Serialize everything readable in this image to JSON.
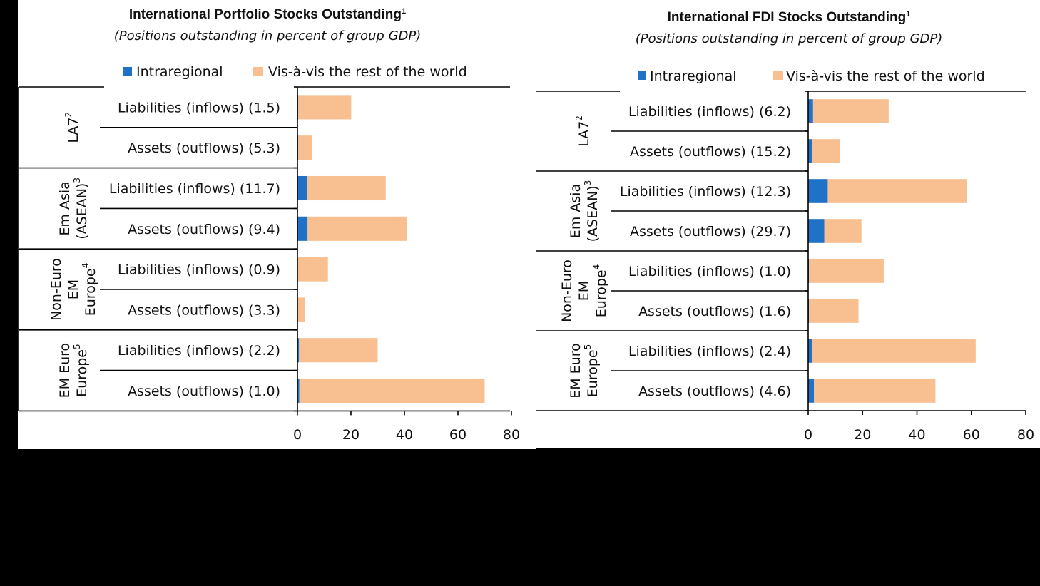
{
  "chart_data": [
    {
      "type": "bar",
      "stacked": true,
      "orientation": "horizontal",
      "title": "International Portfolio Stocks Outstanding",
      "title_sup": "1",
      "subtitle": "(Positions outstanding in percent of group  GDP)",
      "legend_placement": "top",
      "xlim": [
        0,
        80
      ],
      "xticks": [
        "0",
        "20",
        "40",
        "60",
        "80"
      ],
      "groups": [
        {
          "label_lines": [
            "LA7"
          ],
          "sup": "2"
        },
        {
          "label_lines": [
            "Em Asia",
            "(ASEAN)"
          ],
          "sup": "3"
        },
        {
          "label_lines": [
            "Non-Euro",
            "EM",
            "Europe"
          ],
          "sup": "4"
        },
        {
          "label_lines": [
            "EM Euro",
            "Europe"
          ],
          "sup": "5"
        }
      ],
      "categories": [
        "Liabilities (inflows) (1.5)",
        "Assets (outflows) (5.3)",
        "Liabilities (inflows) (11.7)",
        "Assets (outflows) (9.4)",
        "Liabilities (inflows) (0.9)",
        "Assets (outflows) (3.3)",
        "Liabilities (inflows) (2.2)",
        "Assets (outflows) (1.0)"
      ],
      "series": [
        {
          "name": "Intraregional",
          "color": "#1F72C8",
          "values": [
            0.3,
            0.3,
            3.7,
            3.8,
            0.1,
            0.1,
            0.6,
            0.7
          ]
        },
        {
          "name": "Vis-à-vis the rest of the world",
          "color": "#F8C090",
          "values": [
            19.8,
            5.3,
            29.3,
            37.2,
            11.3,
            2.8,
            29.4,
            69.3
          ]
        }
      ]
    },
    {
      "type": "bar",
      "stacked": true,
      "orientation": "horizontal",
      "title": "International FDI Stocks Outstanding",
      "title_sup": "1",
      "subtitle": "(Positions outstanding in percent of group GDP)",
      "legend_placement": "top",
      "xlim": [
        0,
        80
      ],
      "xticks": [
        "0",
        "20",
        "40",
        "60",
        "80"
      ],
      "groups": [
        {
          "label_lines": [
            "LA7"
          ],
          "sup": "2"
        },
        {
          "label_lines": [
            "Em Asia",
            "(ASEAN)"
          ],
          "sup": "3"
        },
        {
          "label_lines": [
            "Non-Euro",
            "EM",
            "Europe"
          ],
          "sup": "4"
        },
        {
          "label_lines": [
            "EM Euro",
            "Europe"
          ],
          "sup": "5"
        }
      ],
      "categories": [
        "Liabilities (inflows) (6.2)",
        "Assets (outflows) (15.2)",
        "Liabilities (inflows) (12.3)",
        "Assets (outflows) (29.7)",
        "Liabilities (inflows) (1.0)",
        "Assets (outflows) (1.6)",
        "Liabilities (inflows) (2.4)",
        "Assets (outflows) (4.6)"
      ],
      "series": [
        {
          "name": "Intraregional",
          "color": "#1F72C8",
          "values": [
            1.8,
            1.5,
            7.2,
            5.9,
            0.3,
            0.3,
            1.5,
            2.1
          ]
        },
        {
          "name": "Vis-à-vis the rest of the world",
          "color": "#F8C090",
          "values": [
            27.8,
            10.2,
            51.1,
            13.7,
            27.6,
            18.2,
            60.1,
            44.7
          ]
        }
      ]
    }
  ]
}
